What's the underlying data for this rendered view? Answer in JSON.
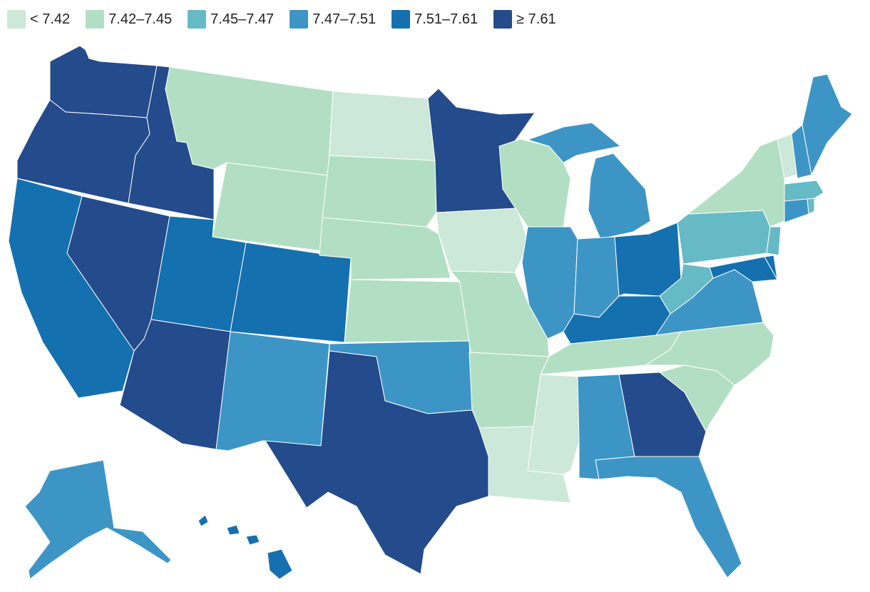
{
  "legend": [
    {
      "label": "< 7.42",
      "color": "#cce8d8"
    },
    {
      "label": "7.42–7.45",
      "color": "#b2dfc3"
    },
    {
      "label": "7.45–7.47",
      "color": "#66bac6"
    },
    {
      "label": "7.47–7.51",
      "color": "#3d95c6"
    },
    {
      "label": "7.51–7.61",
      "color": "#1570b0"
    },
    {
      "label": "≥ 7.61",
      "color": "#244b8b"
    }
  ],
  "states": [
    {
      "id": "WA",
      "bin": 5
    },
    {
      "id": "OR",
      "bin": 5
    },
    {
      "id": "ID",
      "bin": 5
    },
    {
      "id": "NV",
      "bin": 5
    },
    {
      "id": "AZ",
      "bin": 5
    },
    {
      "id": "MN",
      "bin": 5
    },
    {
      "id": "TX",
      "bin": 5
    },
    {
      "id": "GA",
      "bin": 5
    },
    {
      "id": "CA",
      "bin": 4
    },
    {
      "id": "UT",
      "bin": 4
    },
    {
      "id": "CO",
      "bin": 4
    },
    {
      "id": "OH",
      "bin": 4
    },
    {
      "id": "KY",
      "bin": 4
    },
    {
      "id": "MD",
      "bin": 4
    },
    {
      "id": "HI",
      "bin": 4
    },
    {
      "id": "DE",
      "bin": 4
    },
    {
      "id": "NM",
      "bin": 3
    },
    {
      "id": "OK",
      "bin": 3
    },
    {
      "id": "AL",
      "bin": 3
    },
    {
      "id": "FL",
      "bin": 3
    },
    {
      "id": "IL",
      "bin": 3
    },
    {
      "id": "IN",
      "bin": 3
    },
    {
      "id": "MI",
      "bin": 3
    },
    {
      "id": "VA",
      "bin": 3
    },
    {
      "id": "ME",
      "bin": 3
    },
    {
      "id": "NH",
      "bin": 3
    },
    {
      "id": "CT",
      "bin": 3
    },
    {
      "id": "AK",
      "bin": 3
    },
    {
      "id": "PA",
      "bin": 2
    },
    {
      "id": "WV",
      "bin": 2
    },
    {
      "id": "NJ",
      "bin": 2
    },
    {
      "id": "MA",
      "bin": 2
    },
    {
      "id": "RI",
      "bin": 2
    },
    {
      "id": "MT",
      "bin": 1
    },
    {
      "id": "WY",
      "bin": 1
    },
    {
      "id": "SD",
      "bin": 1
    },
    {
      "id": "NE",
      "bin": 1
    },
    {
      "id": "KS",
      "bin": 1
    },
    {
      "id": "MO",
      "bin": 1
    },
    {
      "id": "AR",
      "bin": 1
    },
    {
      "id": "WI",
      "bin": 1
    },
    {
      "id": "TN",
      "bin": 1
    },
    {
      "id": "NC",
      "bin": 1
    },
    {
      "id": "SC",
      "bin": 1
    },
    {
      "id": "NY",
      "bin": 1
    },
    {
      "id": "ND",
      "bin": 0
    },
    {
      "id": "IA",
      "bin": 0
    },
    {
      "id": "MS",
      "bin": 0
    },
    {
      "id": "LA",
      "bin": 0
    },
    {
      "id": "VT",
      "bin": 0
    }
  ]
}
